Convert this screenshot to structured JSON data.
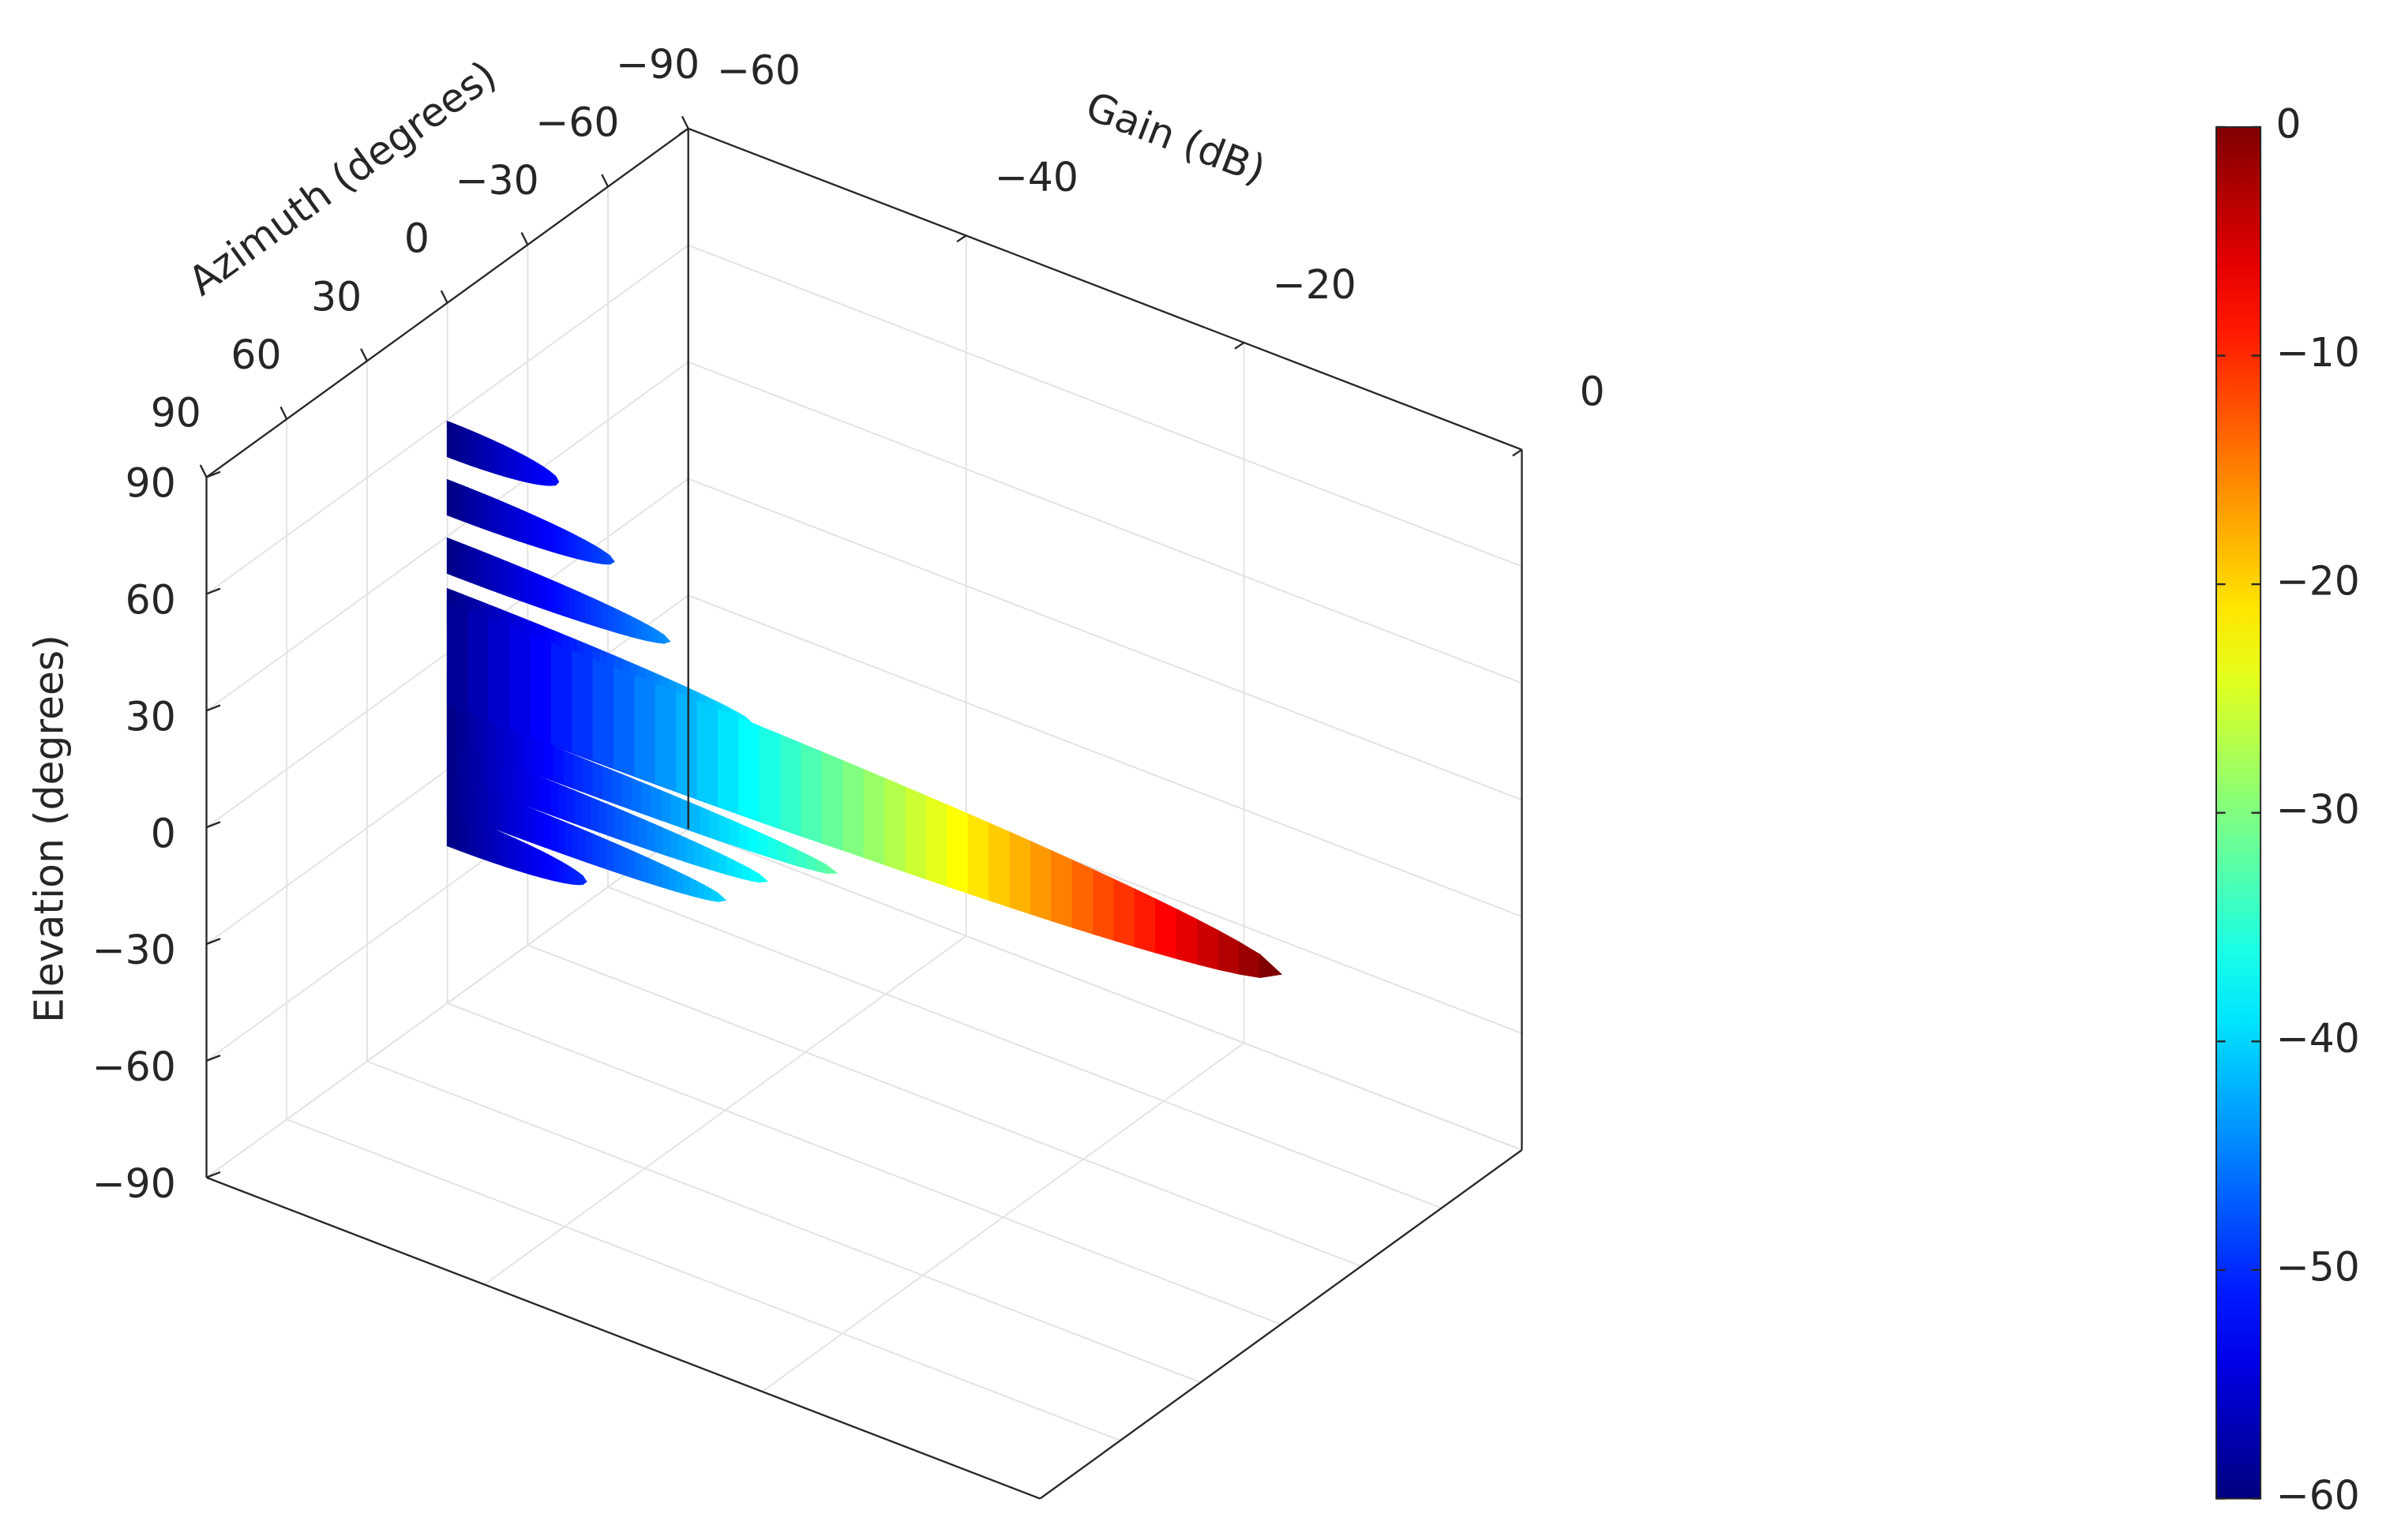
{
  "chart_data": {
    "type": "surface",
    "xlabel": "Azimuth (degrees)",
    "ylabel": "Elevation (degrees)",
    "zlabel": "Gain (dB)",
    "xlim": [
      -90,
      90
    ],
    "xticks": [
      {
        "value": -90,
        "label": "−90"
      },
      {
        "value": -60,
        "label": "−60"
      },
      {
        "value": -30,
        "label": "−30"
      },
      0,
      30,
      60,
      90
    ],
    "ylim": [
      -90,
      90
    ],
    "yticks": [
      {
        "value": -90,
        "label": "−90"
      },
      {
        "value": -60,
        "label": "−60"
      },
      {
        "value": -30,
        "label": "−30"
      },
      0,
      30,
      60,
      90
    ],
    "zlim": [
      -60,
      0
    ],
    "zticks": [
      {
        "value": -60,
        "label": "−60"
      },
      {
        "value": -40,
        "label": "−40"
      },
      {
        "value": -20,
        "label": "−20"
      },
      0
    ],
    "grid": true,
    "colormap": "jet",
    "clim": [
      -60,
      0
    ],
    "colorbar_ticks": [
      {
        "value": -60,
        "label": "−60"
      },
      {
        "value": -50,
        "label": "−50"
      },
      {
        "value": -40,
        "label": "−40"
      },
      {
        "value": -30,
        "label": "−30"
      },
      {
        "value": -20,
        "label": "−20"
      },
      {
        "value": -10,
        "label": "−10"
      },
      0
    ],
    "elevation": [
      -45,
      -36,
      -27,
      -18,
      -9,
      55,
      40,
      25,
      12,
      0
    ],
    "peak_gain": [
      -50,
      -40,
      -37,
      -32,
      -26,
      -52,
      -48,
      -44,
      -38,
      0
    ]
  }
}
